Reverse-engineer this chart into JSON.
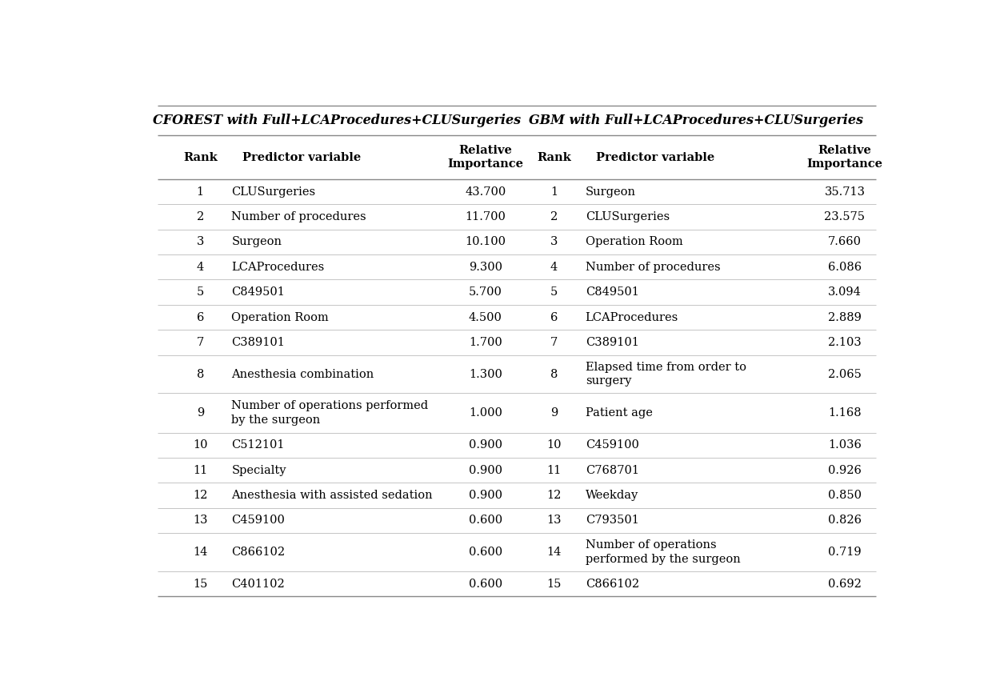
{
  "cforest_title": "CFOREST with Full+LCAProcedures+CLUSurgeries",
  "gbm_title": "GBM with Full+LCAProcedures+CLUSurgeries",
  "cforest_data": [
    [
      "1",
      "CLUSurgeries",
      "43.700"
    ],
    [
      "2",
      "Number of procedures",
      "11.700"
    ],
    [
      "3",
      "Surgeon",
      "10.100"
    ],
    [
      "4",
      "LCAProcedures",
      "9.300"
    ],
    [
      "5",
      "C849501",
      "5.700"
    ],
    [
      "6",
      "Operation Room",
      "4.500"
    ],
    [
      "7",
      "C389101",
      "1.700"
    ],
    [
      "8",
      "Anesthesia combination",
      "1.300"
    ],
    [
      "9",
      "Number of operations performed\nby the surgeon",
      "1.000"
    ],
    [
      "10",
      "C512101",
      "0.900"
    ],
    [
      "11",
      "Specialty",
      "0.900"
    ],
    [
      "12",
      "Anesthesia with assisted sedation",
      "0.900"
    ],
    [
      "13",
      "C459100",
      "0.600"
    ],
    [
      "14",
      "C866102",
      "0.600"
    ],
    [
      "15",
      "C401102",
      "0.600"
    ]
  ],
  "gbm_data": [
    [
      "1",
      "Surgeon",
      "35.713"
    ],
    [
      "2",
      "CLUSurgeries",
      "23.575"
    ],
    [
      "3",
      "Operation Room",
      "7.660"
    ],
    [
      "4",
      "Number of procedures",
      "6.086"
    ],
    [
      "5",
      "C849501",
      "3.094"
    ],
    [
      "6",
      "LCAProcedures",
      "2.889"
    ],
    [
      "7",
      "C389101",
      "2.103"
    ],
    [
      "8",
      "Elapsed time from order to\nsurgery",
      "2.065"
    ],
    [
      "9",
      "Patient age",
      "1.168"
    ],
    [
      "10",
      "C459100",
      "1.036"
    ],
    [
      "11",
      "C768701",
      "0.926"
    ],
    [
      "12",
      "Weekday",
      "0.850"
    ],
    [
      "13",
      "C793501",
      "0.826"
    ],
    [
      "14",
      "Number of operations\nperformed by the surgeon",
      "0.719"
    ],
    [
      "15",
      "C866102",
      "0.692"
    ]
  ],
  "bg_color": "#ffffff",
  "text_color": "#000000",
  "line_color_heavy": "#888888",
  "line_color_light": "#bbbbbb",
  "font_size": 10.5,
  "header_font_size": 10.5,
  "title_font_size": 11.5,
  "figwidth": 12.6,
  "figheight": 8.56,
  "dpi": 100
}
